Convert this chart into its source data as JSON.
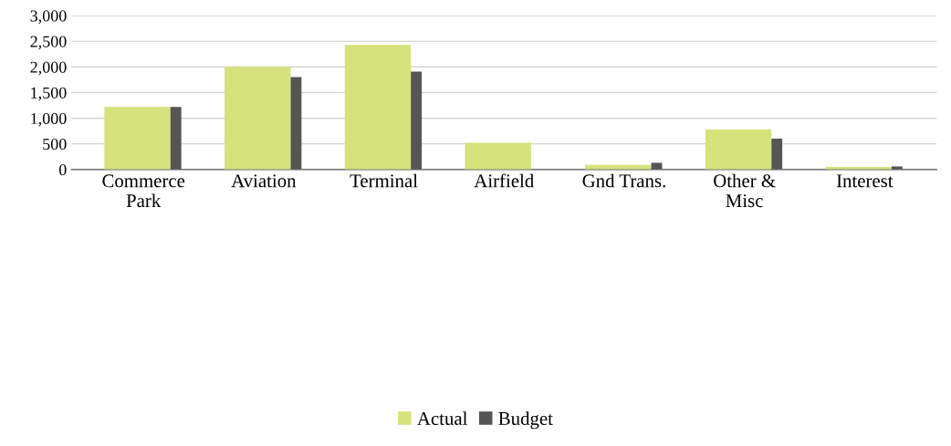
{
  "chart_data": {
    "type": "bar",
    "categories": [
      "Commerce\nPark",
      "Aviation",
      "Terminal",
      "Airfield",
      "Gnd Trans.",
      "Other &\nMisc",
      "Interest"
    ],
    "series": [
      {
        "name": "Actual",
        "color": "#d6e27c",
        "values": [
          1220,
          2000,
          2430,
          520,
          90,
          780,
          50
        ]
      },
      {
        "name": "Budget",
        "color": "#555555",
        "values": [
          1220,
          1800,
          1910,
          null,
          130,
          600,
          60
        ]
      }
    ],
    "ylim": [
      0,
      3000
    ],
    "yticks": [
      {
        "value": 0,
        "label": "0"
      },
      {
        "value": 500,
        "label": "500"
      },
      {
        "value": 1000,
        "label": "1,000"
      },
      {
        "value": 1500,
        "label": "1,500"
      },
      {
        "value": 2000,
        "label": "2,000"
      },
      {
        "value": 2500,
        "label": "2,500"
      },
      {
        "value": 3000,
        "label": "3,000"
      }
    ],
    "grid": "y",
    "legend": "bottom"
  }
}
